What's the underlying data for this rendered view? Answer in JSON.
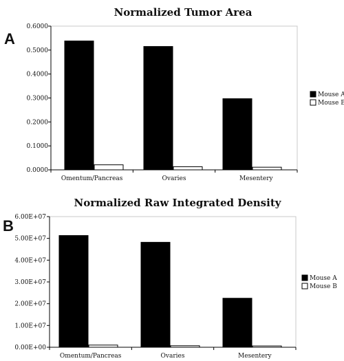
{
  "chart_data": [
    {
      "type": "bar",
      "panel_label": "A",
      "title": "Normalized Tumor Area",
      "categories": [
        "Omentum/Pancreas",
        "Ovaries",
        "Mesentery"
      ],
      "series": [
        {
          "name": "Mouse A",
          "values": [
            0.538,
            0.515,
            0.297
          ],
          "color": "#000000"
        },
        {
          "name": "Mouse B",
          "values": [
            0.021,
            0.013,
            0.011
          ],
          "color": "#ffffff"
        }
      ],
      "ylim": [
        0,
        0.6
      ],
      "yticks": [
        0,
        0.1,
        0.2,
        0.3,
        0.4,
        0.5,
        0.6
      ],
      "ytick_labels": [
        "0.0000",
        "0.1000",
        "0.2000",
        "0.3000",
        "0.4000",
        "0.5000",
        "0.6000"
      ],
      "legend_position": "right",
      "grid": false
    },
    {
      "type": "bar",
      "panel_label": "B",
      "title": "Normalized Raw Integrated Density",
      "categories": [
        "Omentum/Pancreas",
        "Ovaries",
        "Mesentery"
      ],
      "series": [
        {
          "name": "Mouse A",
          "values": [
            51300000,
            48200000,
            22500000
          ],
          "color": "#000000"
        },
        {
          "name": "Mouse B",
          "values": [
            1000000,
            700000,
            600000
          ],
          "color": "#ffffff"
        }
      ],
      "ylim": [
        0,
        60000000
      ],
      "yticks": [
        0,
        10000000,
        20000000,
        30000000,
        40000000,
        50000000,
        60000000
      ],
      "ytick_labels": [
        "0.00E+00",
        "1.00E+07",
        "2.00E+07",
        "3.00E+07",
        "4.00E+07",
        "5.00E+07",
        "6.00E+07"
      ],
      "legend_position": "right",
      "grid": false
    }
  ]
}
